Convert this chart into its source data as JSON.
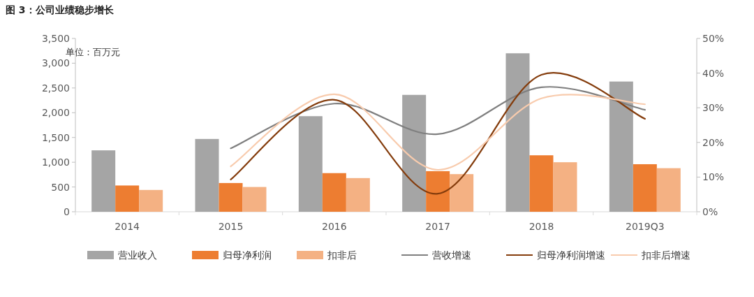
{
  "chart_data": {
    "type": "bar",
    "title": "图 3：公司业绩稳步增长",
    "annotations": [
      "单位：百万元"
    ],
    "categories": [
      "2014",
      "2015",
      "2016",
      "2017",
      "2018",
      "2019Q3"
    ],
    "series": [
      {
        "name": "营业收入",
        "color": "#a5a5a5",
        "values": [
          1240,
          1470,
          1930,
          2360,
          3200,
          2630
        ]
      },
      {
        "name": "归母净利润",
        "color": "#ed7d31",
        "values": [
          530,
          580,
          780,
          820,
          1140,
          960
        ]
      },
      {
        "name": "扣非后",
        "color": "#f4b183",
        "values": [
          440,
          500,
          680,
          760,
          1000,
          880
        ]
      },
      {
        "name": "营收增速",
        "type": "line",
        "axis": "y2",
        "color": "#7f7f7f",
        "values": [
          null,
          18.3,
          31.2,
          22.4,
          35.9,
          29.4
        ]
      },
      {
        "name": "归母净利润增速",
        "type": "line",
        "axis": "y2",
        "color": "#843c0c",
        "values": [
          null,
          9.3,
          32.3,
          5.2,
          39.5,
          26.8
        ]
      },
      {
        "name": "扣非后增速",
        "type": "line",
        "axis": "y2",
        "color": "#f8cbad",
        "values": [
          null,
          13.1,
          33.9,
          12.1,
          32.7,
          31.0
        ]
      }
    ],
    "ylim": [
      0,
      3500
    ],
    "yticks": [
      0,
      {
        "value": 500,
        "label": "500"
      },
      {
        "value": 1000,
        "label": "1,000"
      },
      {
        "value": 1500,
        "label": "1,500"
      },
      {
        "value": 2000,
        "label": "2,000"
      },
      {
        "value": 2500,
        "label": "2,500"
      },
      {
        "value": 3000,
        "label": "3,000"
      },
      {
        "value": 3500,
        "label": "3,500"
      }
    ],
    "y2lim": [
      0,
      50
    ],
    "y2ticks": [
      {
        "value": 0,
        "label": "0%"
      },
      {
        "value": 10,
        "label": "10%"
      },
      {
        "value": 20,
        "label": "20%"
      },
      {
        "value": 30,
        "label": "30%"
      },
      {
        "value": 40,
        "label": "40%"
      },
      {
        "value": 50,
        "label": "50%"
      }
    ],
    "grid": false,
    "legend": "bottom"
  }
}
